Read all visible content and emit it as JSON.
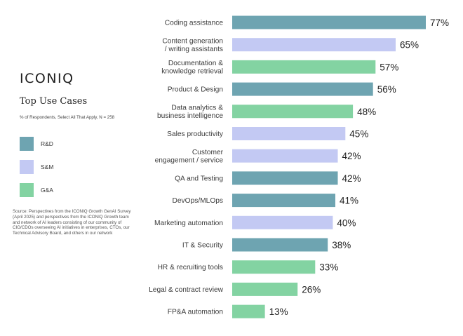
{
  "brand": "ICONIQ",
  "header": {
    "title": "Top Use Cases",
    "subtitle": "% of Respondents, Select All That Apply, N = 258"
  },
  "legend": [
    {
      "label": "R&D",
      "color": "#6ea4b1"
    },
    {
      "label": "S&M",
      "color": "#c3c9f3"
    },
    {
      "label": "G&A",
      "color": "#83d3a2"
    }
  ],
  "source": "Source: Perspectives from the ICONIQ Growth GenAI Survey (April 2025) and perspectives from the ICONIQ Growth team and network of AI leaders consisting of our community of CIO/CDOs overseeing AI initiatives in enterprises, CTOs, our Technical Advisory Board, and others in our network",
  "chart_data": {
    "type": "bar",
    "orientation": "horizontal",
    "title": "Top Use Cases",
    "value_unit": "%",
    "xlim": [
      0,
      77
    ],
    "categories": [
      "Coding assistance",
      "Content generation / writing assistants",
      "Documentation & knowledge retrieval",
      "Product & Design",
      "Data analytics & business intelligence",
      "Sales productivity",
      "Customer engagement / service",
      "QA and Testing",
      "DevOps/MLOps",
      "Marketing automation",
      "IT & Security",
      "HR & recruiting tools",
      "Legal & contract review",
      "FP&A automation"
    ],
    "category_lines": [
      [
        "Coding assistance"
      ],
      [
        "Content generation",
        "/ writing assistants"
      ],
      [
        "Documentation &",
        "knowledge retrieval"
      ],
      [
        "Product & Design"
      ],
      [
        "Data analytics &",
        "business intelligence"
      ],
      [
        "Sales productivity"
      ],
      [
        "Customer",
        "engagement / service"
      ],
      [
        "QA and Testing"
      ],
      [
        "DevOps/MLOps"
      ],
      [
        "Marketing automation"
      ],
      [
        "IT & Security"
      ],
      [
        "HR & recruiting tools"
      ],
      [
        "Legal & contract review"
      ],
      [
        "FP&A automation"
      ]
    ],
    "values": [
      77,
      65,
      57,
      56,
      48,
      45,
      42,
      42,
      41,
      40,
      38,
      33,
      26,
      13
    ],
    "value_labels": [
      "77%",
      "65%",
      "57%",
      "56%",
      "48%",
      "45%",
      "42%",
      "42%",
      "41%",
      "40%",
      "38%",
      "33%",
      "26%",
      "13%"
    ],
    "groups": [
      "R&D",
      "S&M",
      "G&A",
      "R&D",
      "G&A",
      "S&M",
      "S&M",
      "R&D",
      "R&D",
      "S&M",
      "R&D",
      "G&A",
      "G&A",
      "G&A"
    ]
  }
}
